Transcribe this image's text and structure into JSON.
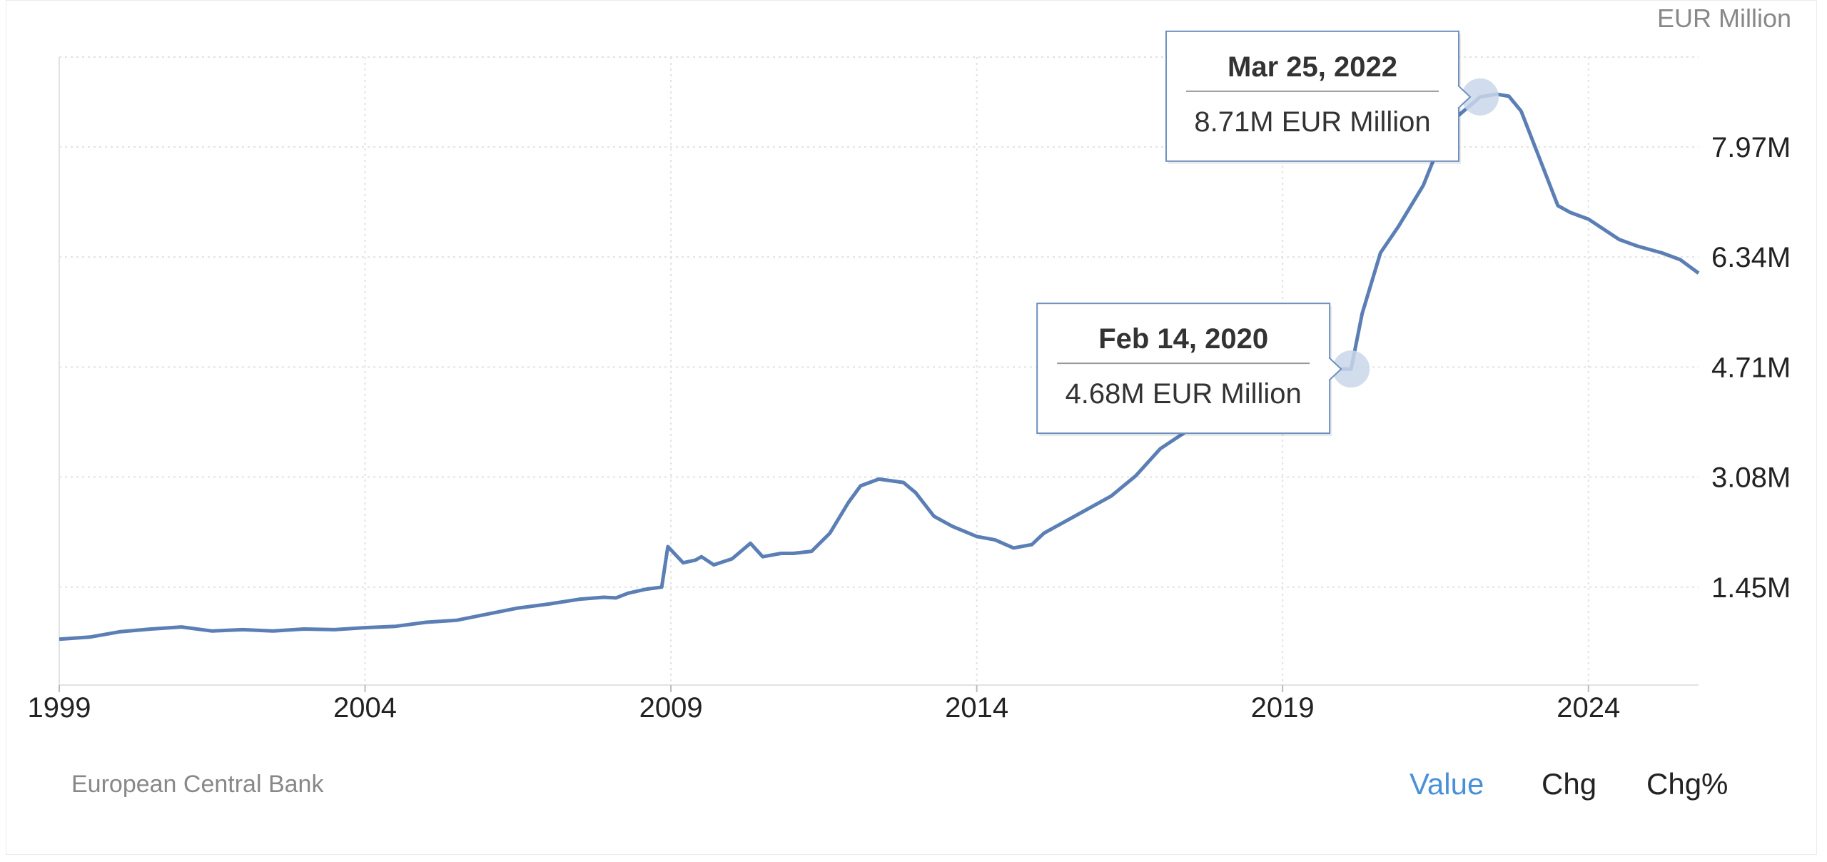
{
  "colors": {
    "line": "#5b7fb5",
    "grid": "#e2e2e2",
    "tooltip_border": "#6f8fbd",
    "active_mode": "#4a90d9",
    "marker": "#c9d6ea"
  },
  "unit_label": "EUR Million",
  "source": "European Central Bank",
  "modes": {
    "value": "Value",
    "chg": "Chg",
    "chg_pct": "Chg%",
    "active": "value"
  },
  "tooltips": [
    {
      "date": "Feb 14, 2020",
      "value": "4.68M EUR Million"
    },
    {
      "date": "Mar 25, 2022",
      "value": "8.71M EUR Million"
    }
  ],
  "chart_data": {
    "type": "line",
    "title": "",
    "xlabel": "",
    "ylabel": "EUR Million",
    "xlim": [
      1999,
      2025.8
    ],
    "ylim": [
      0,
      9300000
    ],
    "x_ticks": [
      "1999",
      "2004",
      "2009",
      "2014",
      "2019",
      "2024"
    ],
    "y_ticks": [
      {
        "value": 1450000,
        "label": "1.45M"
      },
      {
        "value": 3080000,
        "label": "3.08M"
      },
      {
        "value": 4710000,
        "label": "4.71M"
      },
      {
        "value": 6340000,
        "label": "6.34M"
      },
      {
        "value": 7970000,
        "label": "7.97M"
      }
    ],
    "grid": true,
    "series": [
      {
        "x": [
          1999.0,
          1999.5,
          2000.0,
          2000.5,
          2001.0,
          2001.5,
          2002.0,
          2002.5,
          2003.0,
          2003.5,
          2004.0,
          2004.5,
          2005.0,
          2005.5,
          2006.0,
          2006.5,
          2007.0,
          2007.5,
          2007.9,
          2008.1,
          2008.3,
          2008.6,
          2008.85,
          2008.95,
          2009.2,
          2009.4,
          2009.5,
          2009.7,
          2010.0,
          2010.3,
          2010.5,
          2010.8,
          2011.0,
          2011.3,
          2011.6,
          2011.9,
          2012.1,
          2012.4,
          2012.8,
          2013.0,
          2013.3,
          2013.6,
          2014.0,
          2014.3,
          2014.6,
          2014.9,
          2015.1,
          2015.4,
          2015.8,
          2016.2,
          2016.6,
          2017.0,
          2017.5,
          2018.0,
          2018.5,
          2019.0,
          2019.5,
          2019.8,
          2020.12,
          2020.3,
          2020.6,
          2020.9,
          2021.3,
          2021.7,
          2022.23,
          2022.5,
          2022.7,
          2022.9,
          2023.2,
          2023.5,
          2023.7,
          2024.0,
          2024.5,
          2024.8,
          2025.2,
          2025.5,
          2025.8
        ],
        "y": [
          680000,
          710000,
          790000,
          830000,
          860000,
          800000,
          820000,
          800000,
          830000,
          820000,
          850000,
          870000,
          930000,
          960000,
          1050000,
          1140000,
          1200000,
          1270000,
          1300000,
          1290000,
          1360000,
          1420000,
          1450000,
          2050000,
          1810000,
          1850000,
          1900000,
          1780000,
          1870000,
          2100000,
          1900000,
          1950000,
          1950000,
          1980000,
          2250000,
          2700000,
          2950000,
          3050000,
          3000000,
          2850000,
          2500000,
          2350000,
          2200000,
          2150000,
          2030000,
          2080000,
          2250000,
          2400000,
          2600000,
          2800000,
          3100000,
          3500000,
          3800000,
          4100000,
          4400000,
          4550000,
          4600000,
          4680000,
          4680000,
          5500000,
          6400000,
          6800000,
          7400000,
          8300000,
          8710000,
          8750000,
          8720000,
          8500000,
          7800000,
          7100000,
          7000000,
          6900000,
          6600000,
          6500000,
          6400000,
          6300000,
          6100000
        ]
      }
    ],
    "highlighted_points": [
      {
        "x": 2020.12,
        "y": 4680000
      },
      {
        "x": 2022.23,
        "y": 8710000
      }
    ]
  }
}
